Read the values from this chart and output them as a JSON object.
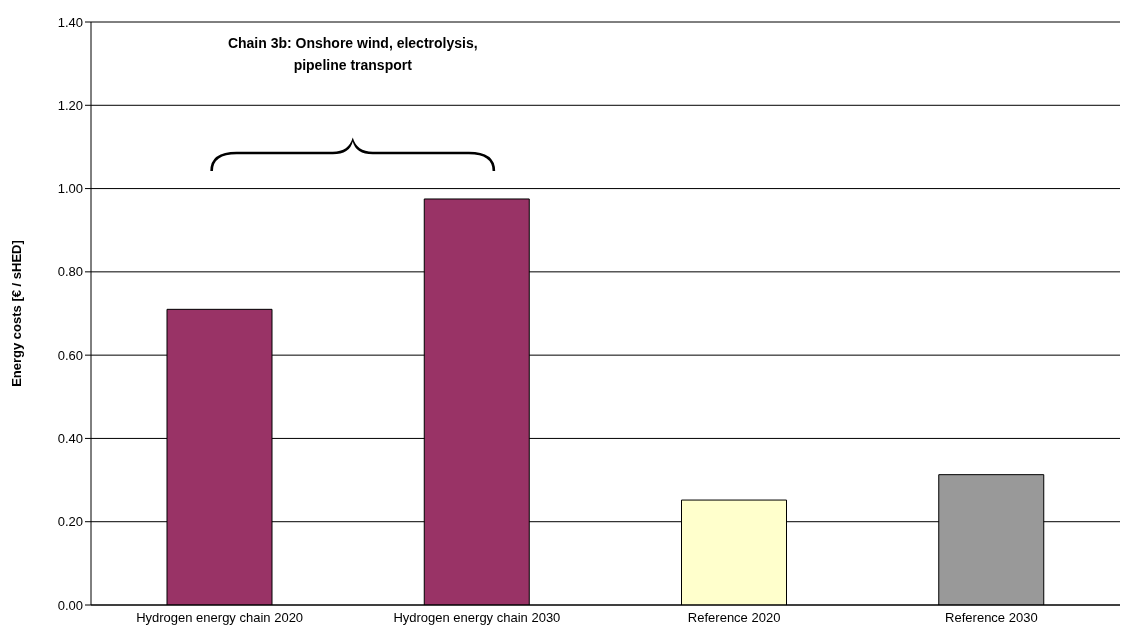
{
  "chart_data": {
    "type": "bar",
    "ylabel": "Energy costs [€ / sHED]",
    "categories": [
      "Hydrogen energy chain 2020",
      "Hydrogen energy chain 2030",
      "Reference 2020",
      "Reference 2030"
    ],
    "values": [
      0.71,
      0.975,
      0.252,
      0.313
    ],
    "colors": [
      "#993366",
      "#993366",
      "#ffffcc",
      "#999999"
    ],
    "ylim": [
      0,
      1.4
    ],
    "yticks": [
      {
        "value": 0,
        "label": "0.00"
      },
      {
        "value": 0.2,
        "label": "0.20"
      },
      {
        "value": 0.4,
        "label": "0.40"
      },
      {
        "value": 0.6,
        "label": "0.60"
      },
      {
        "value": 0.8,
        "label": "0.80"
      },
      {
        "value": 1.0,
        "label": "1.00"
      },
      {
        "value": 1.2,
        "label": "1.20"
      },
      {
        "value": 1.4,
        "label": "1.40"
      }
    ],
    "grid": "y",
    "annotations": [
      "Chain 3b: Onshore wind, electrolysis,\npipeline transport"
    ]
  }
}
